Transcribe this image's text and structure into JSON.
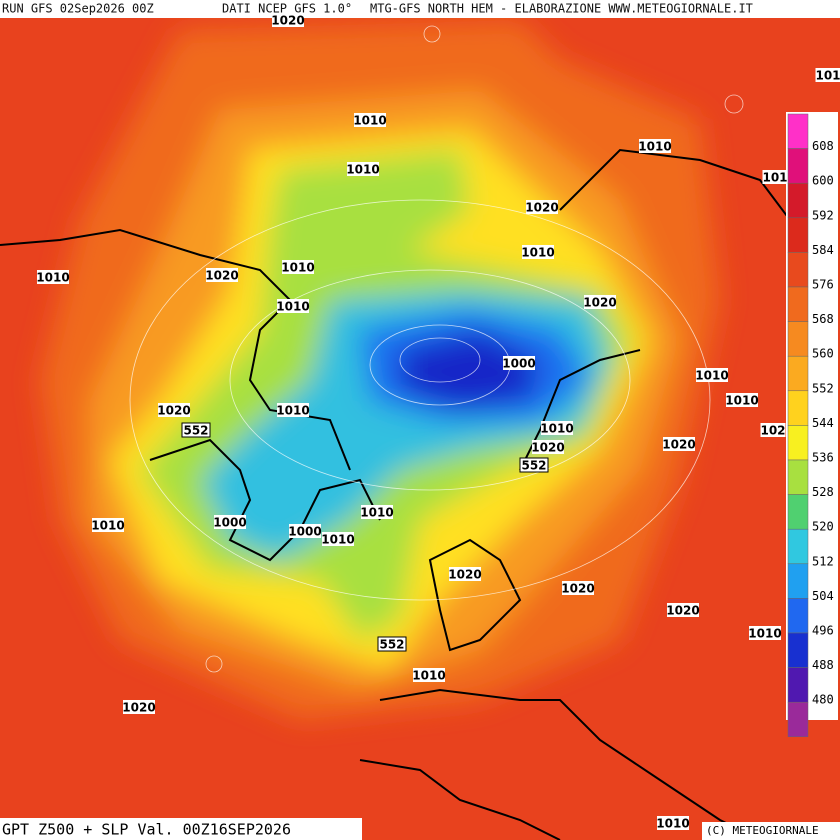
{
  "header": {
    "run": "RUN GFS 02Sep2026 00Z",
    "source": "DATI NCEP GFS 1.0°",
    "title": "MTG-GFS NORTH HEM - ELABORAZIONE WWW.METEOGIORNALE.IT"
  },
  "footer": {
    "product": "GPT Z500 + SLP Val. 00Z16SEP2026",
    "copyright": "(C) METEOGIORNALE"
  },
  "colorbar": {
    "ticks": [
      608,
      600,
      592,
      584,
      576,
      568,
      560,
      552,
      544,
      536,
      528,
      520,
      512,
      504,
      496,
      488,
      480
    ],
    "colors": [
      "#ff30c8",
      "#e0107a",
      "#d41a2a",
      "#dc2a1c",
      "#e84a1e",
      "#f06a1e",
      "#f68a20",
      "#fbaa20",
      "#ffd21e",
      "#f8f020",
      "#a8e040",
      "#50d070",
      "#30c8e0",
      "#20a0f0",
      "#2068f0",
      "#1830d0",
      "#5018b0",
      "#9a2a9a"
    ]
  },
  "slp_labels": [
    1020,
    101,
    1010,
    1010,
    101,
    1010,
    1020,
    1010,
    1020,
    1010,
    1010,
    1010,
    1020,
    1000,
    1010,
    1010,
    1020,
    1010,
    102,
    1010,
    1020,
    1020,
    1010,
    1000,
    1010,
    1000,
    1010,
    1020,
    1020,
    1020,
    1010,
    1010,
    1020,
    1010
  ],
  "z500_labels": [
    552,
    552,
    552
  ]
}
